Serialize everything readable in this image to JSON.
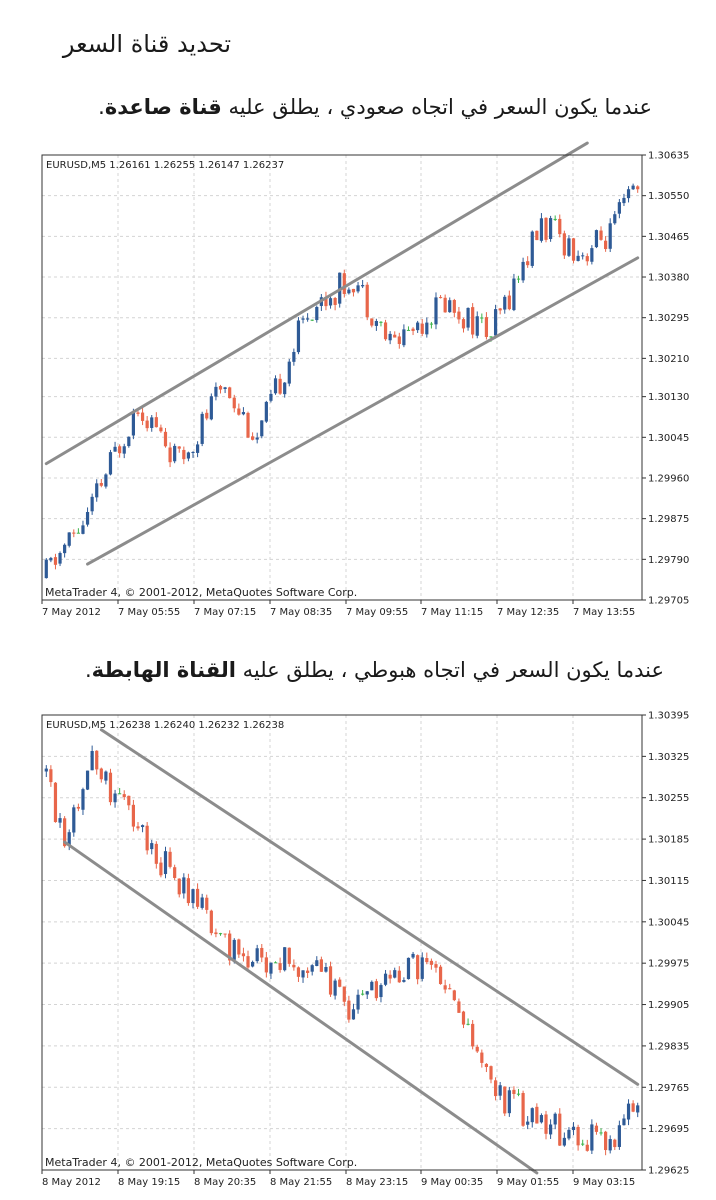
{
  "page": {
    "title": "تحديد قناة السعر",
    "caption_up_text": "عندما يكون السعر في اتجاه صعودي ، يطلق عليه ",
    "caption_up_bold": "قناة صاعدة",
    "caption_up_end": ".",
    "caption_down_text": "عندما يكون السعر في اتجاه هبوطي ، يطلق عليه ",
    "caption_down_bold": "القناة الهابطة",
    "caption_down_end": "."
  },
  "colors": {
    "bull": "#2e5a96",
    "bear": "#e8664a",
    "doji": "#3cb44b",
    "channel": "#8c8c8c",
    "grid": "#d4d4d4"
  },
  "chart_data": [
    {
      "type": "candlestick",
      "header": "EURUSD,M5  1.26161 1.26255 1.26147 1.26237",
      "watermark": "MetaTrader 4, © 2001-2012, MetaQuotes Software Corp.",
      "ylim": [
        1.29705,
        1.30635
      ],
      "yticks": [
        "1.30635",
        "1.30550",
        "1.30465",
        "1.30380",
        "1.30295",
        "1.30210",
        "1.30130",
        "1.30045",
        "1.29960",
        "1.29875",
        "1.29790",
        "1.29705"
      ],
      "xticks": [
        "7 May 2012",
        "7 May 05:55",
        "7 May 07:15",
        "7 May 08:35",
        "7 May 09:55",
        "7 May 11:15",
        "7 May 12:35",
        "7 May 13:55"
      ],
      "n": 130,
      "anchors": [
        [
          0,
          1.2975
        ],
        [
          10,
          1.2988
        ],
        [
          21,
          1.3012
        ],
        [
          30,
          1.2999
        ],
        [
          40,
          1.3016
        ],
        [
          47,
          1.3004
        ],
        [
          58,
          1.3031
        ],
        [
          68,
          1.3038
        ],
        [
          76,
          1.3024
        ],
        [
          88,
          1.3033
        ],
        [
          98,
          1.3026
        ],
        [
          109,
          1.3049
        ],
        [
          118,
          1.3043
        ],
        [
          124,
          1.3047
        ],
        [
          129,
          1.3056
        ]
      ],
      "channel": {
        "upper": [
          [
            1.2999,
            0
          ],
          [
            1.3066,
            118
          ]
        ],
        "lower": [
          [
            1.2978,
            9
          ],
          [
            1.3042,
            129
          ]
        ]
      }
    },
    {
      "type": "candlestick",
      "header": "EURUSD,M5  1.26238 1.26240 1.26232 1.26238",
      "watermark": "MetaTrader 4, © 2001-2012, MetaQuotes Software Corp.",
      "ylim": [
        1.29625,
        1.30395
      ],
      "yticks": [
        "1.30395",
        "1.30325",
        "1.30255",
        "1.30185",
        "1.30115",
        "1.30045",
        "1.29975",
        "1.29905",
        "1.29835",
        "1.29765",
        "1.29695",
        "1.29625"
      ],
      "xticks": [
        "8 May 2012",
        "8 May 19:15",
        "8 May 20:35",
        "8 May 21:55",
        "8 May 23:15",
        "9 May 00:35",
        "9 May 01:55",
        "9 May 03:15"
      ],
      "n": 130,
      "anchors": [
        [
          0,
          1.303
        ],
        [
          5,
          1.302
        ],
        [
          11,
          1.3032
        ],
        [
          18,
          1.3024
        ],
        [
          26,
          1.3015
        ],
        [
          36,
          1.3005
        ],
        [
          44,
          1.2998
        ],
        [
          52,
          1.2998
        ],
        [
          60,
          1.2997
        ],
        [
          66,
          1.299
        ],
        [
          76,
          1.2995
        ],
        [
          84,
          1.2998
        ],
        [
          90,
          1.299
        ],
        [
          100,
          1.2975
        ],
        [
          110,
          1.297
        ],
        [
          118,
          1.2968
        ],
        [
          125,
          1.2967
        ],
        [
          129,
          1.2975
        ]
      ],
      "channel": {
        "upper": [
          [
            1.3037,
            12
          ],
          [
            1.2977,
            129
          ]
        ],
        "lower": [
          [
            1.3018,
            4
          ],
          [
            1.2962,
            107
          ]
        ]
      }
    }
  ]
}
